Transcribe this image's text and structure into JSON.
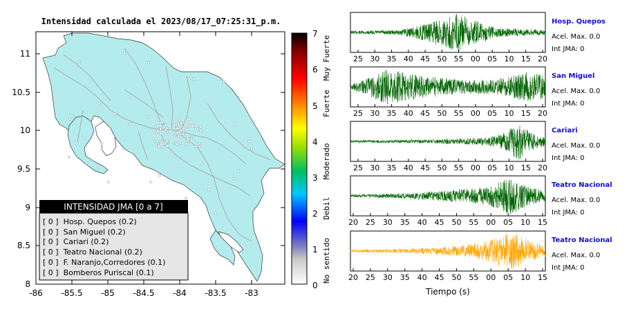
{
  "map": {
    "title": "Intensidad calculada el 2023/08/17_07:25:31_p.m.",
    "x_ticks": [
      "-86",
      "-85.5",
      "-85",
      "-84.5",
      "-84",
      "-83.5",
      "-83"
    ],
    "y_ticks": [
      "11",
      "10.5",
      "10",
      "9.5",
      "9",
      "8.5",
      "8"
    ],
    "land_color": "#b4eced",
    "sea_color": "#ffffff",
    "legend": {
      "title": "INTENSIDAD JMA [0 a 7]",
      "items": [
        "[ 0 ]  Hosp. Quepos (0.2)",
        "[ 0 ]  San Miguel (0.2)",
        "[ 0 ]  Cariari (0.2)",
        "[ 0 ]  Teatro Nacional (0.2)",
        "[ 0 ]  F. Naranjo,Corredores (0.1)",
        "[ 0 ]  Bomberos Puriscal (0.1)"
      ]
    }
  },
  "colorbar": {
    "ticks": [
      "7",
      "6",
      "5",
      "4",
      "3",
      "2",
      "1",
      "0"
    ],
    "labels": [
      "Muy Fuerte",
      "Fuerte",
      "Moderado",
      "Debil",
      "No sentido"
    ]
  },
  "chart_data": [
    {
      "type": "line",
      "name": "Hosp. Quepos",
      "x_ticks": [
        "25",
        "30",
        "35",
        "40",
        "45",
        "50",
        "55",
        "00",
        "05",
        "10",
        "15",
        "20"
      ],
      "accel_label": "Acel. Max. 0.0",
      "jma_label": "Int JMA: 0",
      "color": "#006400"
    },
    {
      "type": "line",
      "name": "San Miguel",
      "x_ticks": [
        "25",
        "30",
        "35",
        "40",
        "45",
        "50",
        "55",
        "00",
        "05",
        "10",
        "15",
        "20"
      ],
      "accel_label": "Acel. Max. 0.0",
      "jma_label": "Int JMA: 0",
      "color": "#006400"
    },
    {
      "type": "line",
      "name": "Cariari",
      "x_ticks": [
        "25",
        "30",
        "35",
        "40",
        "45",
        "50",
        "55",
        "00",
        "05",
        "10",
        "15",
        "20"
      ],
      "accel_label": "Acel. Max. 0.0",
      "jma_label": "Int JMA: 0",
      "color": "#006400"
    },
    {
      "type": "line",
      "name": "Teatro Nacional",
      "x_ticks": [
        "20",
        "25",
        "30",
        "35",
        "40",
        "45",
        "50",
        "55",
        "00",
        "05",
        "10",
        "15"
      ],
      "accel_label": "Acel. Max. 0.0",
      "jma_label": "Int JMA: 0",
      "color": "#006400"
    },
    {
      "type": "line",
      "name": "Teatro Nacional",
      "x_ticks": [
        "20",
        "25",
        "30",
        "35",
        "40",
        "45",
        "50",
        "55",
        "00",
        "05",
        "10",
        "15"
      ],
      "accel_label": "Acel. Max. 0.0",
      "jma_label": "Int JMA: 0",
      "color": "#ffa500",
      "xlabel": "Tiempo (s)"
    }
  ]
}
